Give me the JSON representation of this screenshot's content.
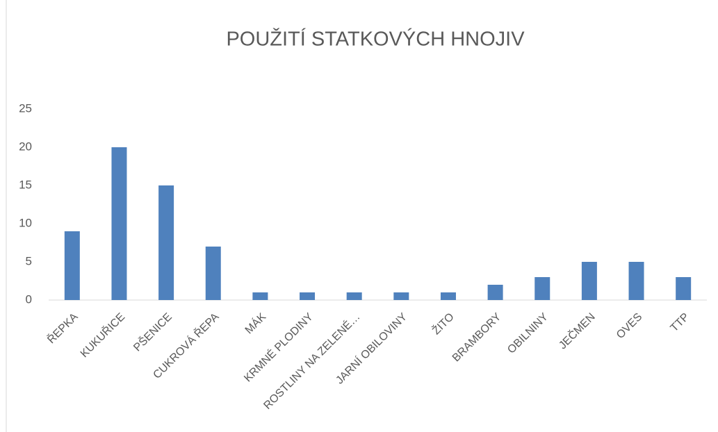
{
  "chart_data": {
    "type": "bar",
    "title": "POUŽITÍ STATKOVÝCH HNOJIV",
    "categories": [
      "ŘEPKA",
      "KUKUŘICE",
      "PŠENICE",
      "CUKROVÁ ŘEPA",
      "MÁK",
      "KRMNÉ PLODINY",
      "ROSTLINY NA ZELENÉ…",
      "JARNÍ OBILOVINY",
      "ŽITO",
      "BRAMBORY",
      "OBILNINY",
      "JEČMEN",
      "OVES",
      "TTP"
    ],
    "values": [
      9,
      20,
      15,
      7,
      1,
      1,
      1,
      1,
      1,
      2,
      3,
      5,
      5,
      3
    ],
    "color": "#4f81bd",
    "ylim": [
      0,
      25
    ],
    "yticks": [
      0,
      5,
      10,
      15,
      20,
      25
    ],
    "grid": false
  }
}
